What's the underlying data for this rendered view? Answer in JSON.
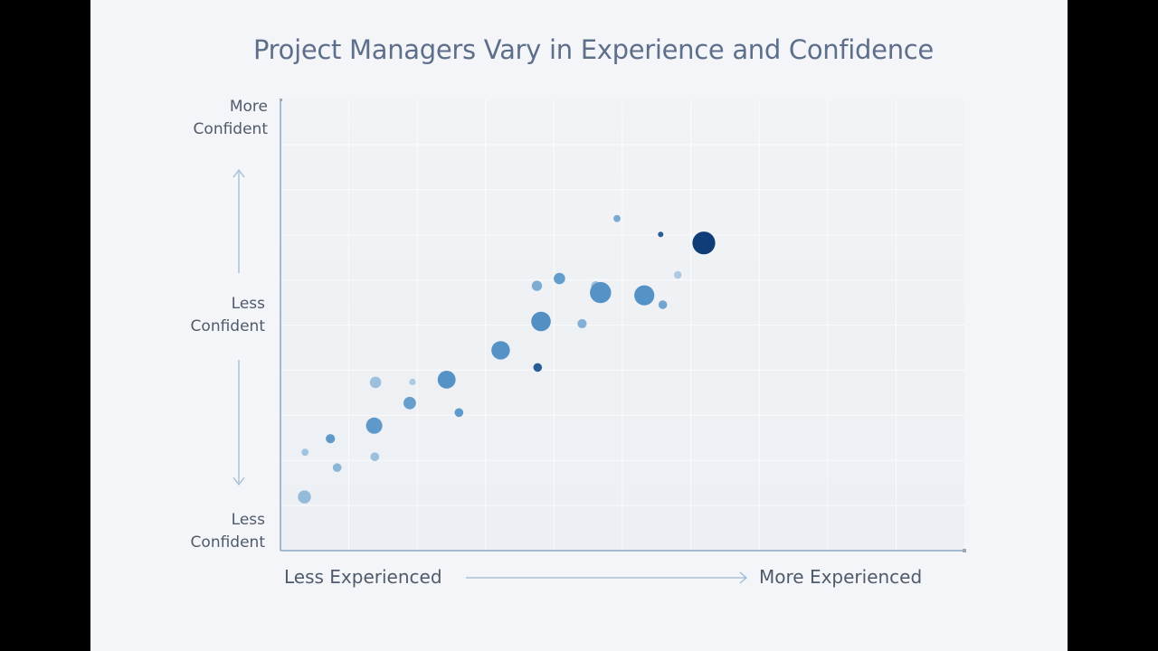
{
  "chart_data": {
    "type": "scatter",
    "title": "Project Managers Vary in Experience and Confidence",
    "xlabel_low": "Less Experienced",
    "xlabel_high": "More Experienced",
    "y_labels": {
      "top": [
        "More",
        "Confident"
      ],
      "middle": [
        "Less",
        "Confident"
      ],
      "bottom": [
        "Less",
        "Confident"
      ]
    },
    "xlim": [
      0,
      100
    ],
    "ylim": [
      0,
      100
    ],
    "grid": true,
    "legend": "none",
    "colors": {
      "light": "#c3d8ea",
      "mid": "#5593c6",
      "dark": "#0f3d78",
      "axis": "#8aa6c2"
    },
    "points": [
      {
        "x": 3.5,
        "y": 11.9,
        "size": 2.4,
        "shade": 0.25
      },
      {
        "x": 3.6,
        "y": 21.8,
        "size": 1.3,
        "shade": 0.18
      },
      {
        "x": 7.3,
        "y": 24.8,
        "size": 1.7,
        "shade": 0.55
      },
      {
        "x": 8.3,
        "y": 18.4,
        "size": 1.6,
        "shade": 0.3
      },
      {
        "x": 13.7,
        "y": 27.7,
        "size": 3.0,
        "shade": 0.55
      },
      {
        "x": 13.8,
        "y": 20.8,
        "size": 1.6,
        "shade": 0.22
      },
      {
        "x": 13.9,
        "y": 37.3,
        "size": 2.1,
        "shade": 0.22
      },
      {
        "x": 18.9,
        "y": 32.7,
        "size": 2.3,
        "shade": 0.5
      },
      {
        "x": 19.3,
        "y": 37.4,
        "size": 1.2,
        "shade": 0.12
      },
      {
        "x": 24.3,
        "y": 37.9,
        "size": 3.3,
        "shade": 0.6
      },
      {
        "x": 26.1,
        "y": 30.6,
        "size": 1.6,
        "shade": 0.55
      },
      {
        "x": 32.2,
        "y": 44.4,
        "size": 3.4,
        "shade": 0.6
      },
      {
        "x": 37.5,
        "y": 58.7,
        "size": 1.9,
        "shade": 0.38
      },
      {
        "x": 37.6,
        "y": 40.6,
        "size": 1.6,
        "shade": 0.85
      },
      {
        "x": 38.1,
        "y": 50.8,
        "size": 3.6,
        "shade": 0.62
      },
      {
        "x": 40.8,
        "y": 60.3,
        "size": 2.1,
        "shade": 0.52
      },
      {
        "x": 44.1,
        "y": 50.3,
        "size": 1.7,
        "shade": 0.35
      },
      {
        "x": 46.1,
        "y": 58.7,
        "size": 1.7,
        "shade": 0.22
      },
      {
        "x": 46.8,
        "y": 57.2,
        "size": 3.9,
        "shade": 0.6
      },
      {
        "x": 49.2,
        "y": 73.6,
        "size": 1.3,
        "shade": 0.4
      },
      {
        "x": 53.2,
        "y": 56.6,
        "size": 3.7,
        "shade": 0.6
      },
      {
        "x": 55.9,
        "y": 54.5,
        "size": 1.6,
        "shade": 0.45
      },
      {
        "x": 55.6,
        "y": 70.1,
        "size": 1.0,
        "shade": 0.85
      },
      {
        "x": 58.1,
        "y": 61.1,
        "size": 1.4,
        "shade": 0.12
      },
      {
        "x": 61.9,
        "y": 68.2,
        "size": 4.2,
        "shade": 1.0
      }
    ]
  }
}
